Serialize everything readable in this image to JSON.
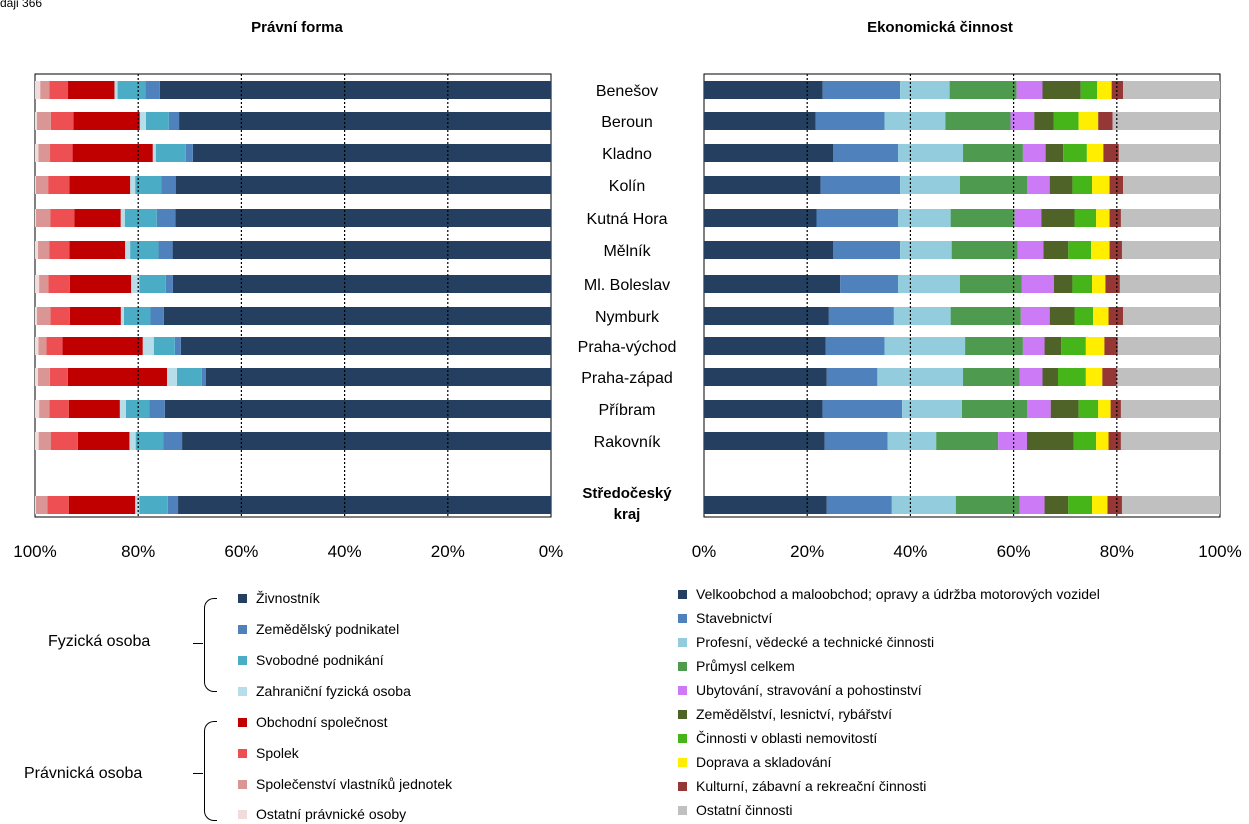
{
  "top_fragment": "daji 366",
  "chart_data": [
    {
      "type": "bar",
      "orientation": "horizontal-stacked-100",
      "title": "Právní forma",
      "x_axis_reversed": true,
      "xlim": [
        0,
        100
      ],
      "x_ticks": [
        "100%",
        "80%",
        "60%",
        "40%",
        "20%",
        "0%"
      ],
      "grid": "vertical dotted",
      "categories": [
        "Benešov",
        "Beroun",
        "Kladno",
        "Kolín",
        "Kutná Hora",
        "Mělník",
        "Ml. Boleslav",
        "Nymburk",
        "Praha-východ",
        "Praha-západ",
        "Příbram",
        "Rakovník",
        "Středočeský kraj"
      ],
      "series": [
        {
          "name": "Živnostník",
          "color": "#243f60",
          "values": [
            75.8,
            72.8,
            71.5,
            74.2,
            72.8,
            74.8,
            74.0,
            75.8,
            73.9,
            69.6,
            75.6,
            71.5,
            73.0
          ]
        },
        {
          "name": "Zemědělský podnikatel",
          "color": "#4f81bd",
          "values": [
            2.8,
            2.0,
            1.4,
            2.8,
            3.6,
            2.8,
            1.4,
            2.6,
            1.2,
            0.8,
            3.0,
            3.6,
            2.0
          ]
        },
        {
          "name": "Svobodné podnikání",
          "color": "#4bacc6",
          "values": [
            5.4,
            4.5,
            6.0,
            5.2,
            6.2,
            5.6,
            5.2,
            5.2,
            4.2,
            5.0,
            4.6,
            5.4,
            5.6
          ]
        },
        {
          "name": "Zahraniční fyzická osoba",
          "color": "#b7dee8",
          "values": [
            0.6,
            1.2,
            0.6,
            1.0,
            0.8,
            1.0,
            1.6,
            0.6,
            2.2,
            2.0,
            1.2,
            1.2,
            0.8
          ]
        },
        {
          "name": "Obchodní společnost",
          "color": "#c00000",
          "values": [
            9.0,
            13.0,
            16.0,
            12.0,
            9.0,
            11.0,
            12.0,
            10.0,
            16.0,
            20.0,
            10.0,
            10.0,
            13.0
          ]
        },
        {
          "name": "Spolek",
          "color": "#ee4f52",
          "values": [
            3.6,
            4.4,
            4.5,
            4.2,
            4.6,
            4.0,
            4.2,
            3.8,
            3.2,
            3.6,
            3.8,
            5.2,
            4.2
          ]
        },
        {
          "name": "Společenství vlastníků jednotek",
          "color": "#d99694",
          "values": [
            1.8,
            2.7,
            2.3,
            2.4,
            2.8,
            2.2,
            1.8,
            2.6,
            1.6,
            2.4,
            2.0,
            2.4,
            2.2
          ]
        },
        {
          "name": "Ostatní právnické osoby",
          "color": "#f2dcdb",
          "values": [
            1.0,
            0.4,
            0.7,
            0.2,
            0.2,
            0.6,
            0.8,
            0.4,
            0.7,
            0.6,
            0.8,
            0.7,
            0.2
          ]
        }
      ]
    },
    {
      "type": "bar",
      "orientation": "horizontal-stacked-100",
      "title": "Ekonomická činnost",
      "xlim": [
        0,
        100
      ],
      "x_ticks": [
        "0%",
        "20%",
        "40%",
        "60%",
        "80%",
        "100%"
      ],
      "grid": "vertical dotted",
      "categories": [
        "Benešov",
        "Beroun",
        "Kladno",
        "Kolín",
        "Kutná Hora",
        "Mělník",
        "Ml. Boleslav",
        "Nymburk",
        "Praha-východ",
        "Praha-západ",
        "Příbram",
        "Rakovník",
        "Středočeský kraj"
      ],
      "series": [
        {
          "name": "Velkoobchod a maloobchod; opravy a údržba motorových vozidel",
          "color": "#243f60",
          "values": [
            23.0,
            21.6,
            25.0,
            22.6,
            21.8,
            25.0,
            26.4,
            24.2,
            23.6,
            23.8,
            23.0,
            23.4,
            23.8
          ]
        },
        {
          "name": "Stavebnictví",
          "color": "#4f81bd",
          "values": [
            15.0,
            13.4,
            12.6,
            15.4,
            15.8,
            13.0,
            11.2,
            12.6,
            11.4,
            9.8,
            15.4,
            12.2,
            12.6
          ]
        },
        {
          "name": "Profesní, vědecké a technické činnosti",
          "color": "#93cddd",
          "values": [
            9.6,
            11.8,
            12.6,
            11.6,
            10.2,
            10.0,
            12.0,
            11.0,
            15.6,
            16.6,
            11.6,
            9.4,
            12.4
          ]
        },
        {
          "name": "Průmysl celkem",
          "color": "#4e9a4f",
          "values": [
            13.0,
            12.6,
            11.6,
            13.0,
            12.4,
            12.8,
            12.0,
            13.6,
            11.2,
            11.0,
            12.6,
            12.0,
            12.4
          ]
        },
        {
          "name": "Ubytování, stravování a pohostinství",
          "color": "#cc7af5",
          "values": [
            5.0,
            4.6,
            4.4,
            4.4,
            5.2,
            5.0,
            6.2,
            5.6,
            4.2,
            4.4,
            4.6,
            5.6,
            4.8
          ]
        },
        {
          "name": "Zemědělství, lesnictví, rybářství",
          "color": "#4f6228",
          "values": [
            7.4,
            3.8,
            3.4,
            4.4,
            6.4,
            4.8,
            3.6,
            4.8,
            3.2,
            3.0,
            5.4,
            9.0,
            4.6
          ]
        },
        {
          "name": "Činnosti v oblasti nemovitostí",
          "color": "#46b51a",
          "values": [
            3.2,
            4.8,
            4.6,
            3.8,
            4.2,
            4.4,
            3.8,
            3.6,
            4.8,
            5.4,
            3.8,
            4.4,
            4.6
          ]
        },
        {
          "name": "Doprava a skladování",
          "color": "#ffee00",
          "values": [
            2.8,
            3.8,
            3.2,
            3.4,
            2.6,
            3.6,
            2.6,
            3.0,
            3.6,
            3.2,
            2.4,
            2.4,
            3.0
          ]
        },
        {
          "name": "Kulturní, zábavní a rekreační činnosti",
          "color": "#953735",
          "values": [
            2.2,
            2.8,
            3.0,
            2.6,
            2.2,
            2.4,
            2.8,
            2.8,
            2.6,
            2.8,
            2.0,
            2.4,
            2.8
          ]
        },
        {
          "name": "Ostatní činnosti",
          "color": "#c0c0c0",
          "values": [
            18.8,
            20.8,
            19.6,
            18.8,
            19.2,
            19.0,
            19.4,
            18.8,
            19.8,
            20.0,
            19.2,
            19.2,
            19.0
          ]
        }
      ]
    }
  ],
  "legend_left": {
    "groups": [
      {
        "label": "Fyzická osoba",
        "items": [
          {
            "label": "Živnostník",
            "color": "#243f60"
          },
          {
            "label": "Zemědělský podnikatel",
            "color": "#4f81bd"
          },
          {
            "label": "Svobodné podnikání",
            "color": "#4bacc6"
          },
          {
            "label": "Zahraniční fyzická osoba",
            "color": "#b7dee8"
          }
        ]
      },
      {
        "label": "Právnická osoba",
        "items": [
          {
            "label": "Obchodní společnost",
            "color": "#c00000"
          },
          {
            "label": "Spolek",
            "color": "#ee4f52"
          },
          {
            "label": "Společenství vlastníků jednotek",
            "color": "#d99694"
          },
          {
            "label": "Ostatní právnické osoby",
            "color": "#f2dcdb"
          }
        ]
      }
    ]
  },
  "legend_right": {
    "items": [
      {
        "label": "Velkoobchod a maloobchod; opravy a údržba motorových vozidel",
        "color": "#243f60"
      },
      {
        "label": "Stavebnictví",
        "color": "#4f81bd"
      },
      {
        "label": "Profesní, vědecké a technické činnosti",
        "color": "#93cddd"
      },
      {
        "label": "Průmysl celkem",
        "color": "#4e9a4f"
      },
      {
        "label": "Ubytování, stravování a pohostinství",
        "color": "#cc7af5"
      },
      {
        "label": "Zemědělství, lesnictví, rybářství",
        "color": "#4f6228"
      },
      {
        "label": "Činnosti v oblasti nemovitostí",
        "color": "#46b51a"
      },
      {
        "label": "Doprava a skladování",
        "color": "#ffee00"
      },
      {
        "label": "Kulturní, zábavní a rekreační činnosti",
        "color": "#953735"
      },
      {
        "label": "Ostatní činnosti",
        "color": "#c0c0c0"
      }
    ]
  }
}
